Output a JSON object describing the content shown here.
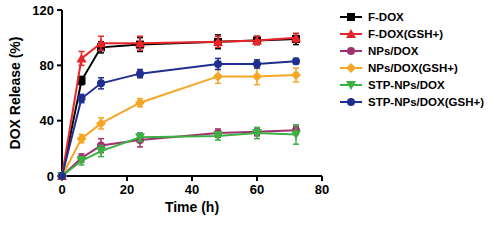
{
  "chart_data": {
    "type": "line",
    "x_label": "Time (h)",
    "y_label": "DOX Release (%)",
    "x": [
      0,
      6,
      12,
      24,
      48,
      60,
      72
    ],
    "xlim": [
      0,
      80
    ],
    "xticks": [
      0,
      20,
      40,
      60,
      80
    ],
    "ylim": [
      0,
      120
    ],
    "yticks": [
      0,
      40,
      80,
      120
    ],
    "grid": false,
    "legend": "right",
    "series": [
      {
        "name": "F-DOX",
        "color": "#000000",
        "marker": "square",
        "values": [
          0,
          69,
          93,
          95,
          97,
          98,
          99
        ],
        "errors": [
          0,
          3,
          4,
          5,
          5,
          3,
          4
        ]
      },
      {
        "name": "F-DOX(GSH+)",
        "color": "#e8262a",
        "marker": "triangle",
        "values": [
          0,
          85,
          96,
          96,
          97,
          98,
          100
        ],
        "errors": [
          0,
          5,
          5,
          5,
          4,
          3,
          3
        ]
      },
      {
        "name": "NPs/DOX",
        "color": "#a0306e",
        "marker": "circle",
        "values": [
          0,
          13,
          22,
          26,
          31,
          32,
          33
        ],
        "errors": [
          0,
          3,
          5,
          5,
          3,
          3,
          3
        ]
      },
      {
        "name": "NPs/DOX(GSH+)",
        "color": "#f5a623",
        "marker": "diamond",
        "values": [
          0,
          27,
          38,
          53,
          72,
          72,
          73
        ],
        "errors": [
          0,
          3,
          4,
          3,
          5,
          6,
          5
        ]
      },
      {
        "name": "STP-NPs/DOX",
        "color": "#3cb043",
        "marker": "triangle-down",
        "values": [
          0,
          11,
          18,
          28,
          29,
          31,
          30
        ],
        "errors": [
          0,
          3,
          4,
          3,
          3,
          4,
          7
        ]
      },
      {
        "name": "STP-NPs/DOX(GSH+)",
        "color": "#1f2f8f",
        "marker": "circle",
        "values": [
          0,
          56,
          67,
          74,
          81,
          81,
          83
        ],
        "errors": [
          0,
          3,
          4,
          3,
          4,
          3,
          2
        ]
      }
    ]
  }
}
